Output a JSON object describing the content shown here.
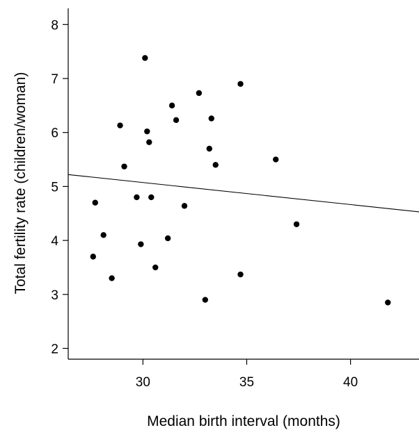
{
  "chart_data": {
    "type": "scatter",
    "xlabel": "Median birth interval (months)",
    "ylabel": "Total fertility rate (children/woman)",
    "xlim": [
      26.4,
      43.3
    ],
    "ylim": [
      1.8,
      8.3
    ],
    "x_ticks": [
      30,
      35,
      40
    ],
    "y_ticks": [
      2,
      3,
      4,
      5,
      6,
      7,
      8
    ],
    "grid": false,
    "axes_style": "left-and-bottom",
    "points": [
      {
        "x": 27.6,
        "y": 3.7
      },
      {
        "x": 27.7,
        "y": 4.7
      },
      {
        "x": 28.1,
        "y": 4.1
      },
      {
        "x": 28.5,
        "y": 3.3
      },
      {
        "x": 28.9,
        "y": 6.13
      },
      {
        "x": 29.1,
        "y": 5.37
      },
      {
        "x": 29.7,
        "y": 4.8
      },
      {
        "x": 29.9,
        "y": 3.93
      },
      {
        "x": 30.1,
        "y": 7.38
      },
      {
        "x": 30.2,
        "y": 6.02
      },
      {
        "x": 30.3,
        "y": 5.82
      },
      {
        "x": 30.4,
        "y": 4.8
      },
      {
        "x": 30.6,
        "y": 3.5
      },
      {
        "x": 31.2,
        "y": 4.04
      },
      {
        "x": 31.4,
        "y": 6.5
      },
      {
        "x": 31.6,
        "y": 6.23
      },
      {
        "x": 32.0,
        "y": 4.64
      },
      {
        "x": 32.7,
        "y": 6.73
      },
      {
        "x": 33.0,
        "y": 2.9
      },
      {
        "x": 33.2,
        "y": 5.7
      },
      {
        "x": 33.3,
        "y": 6.26
      },
      {
        "x": 33.5,
        "y": 5.4
      },
      {
        "x": 34.7,
        "y": 6.9
      },
      {
        "x": 34.7,
        "y": 3.37
      },
      {
        "x": 36.4,
        "y": 5.5
      },
      {
        "x": 37.4,
        "y": 4.3
      },
      {
        "x": 41.8,
        "y": 2.85
      }
    ],
    "trendline": {
      "x": [
        26.4,
        43.3
      ],
      "y": [
        5.22,
        4.53
      ]
    }
  }
}
